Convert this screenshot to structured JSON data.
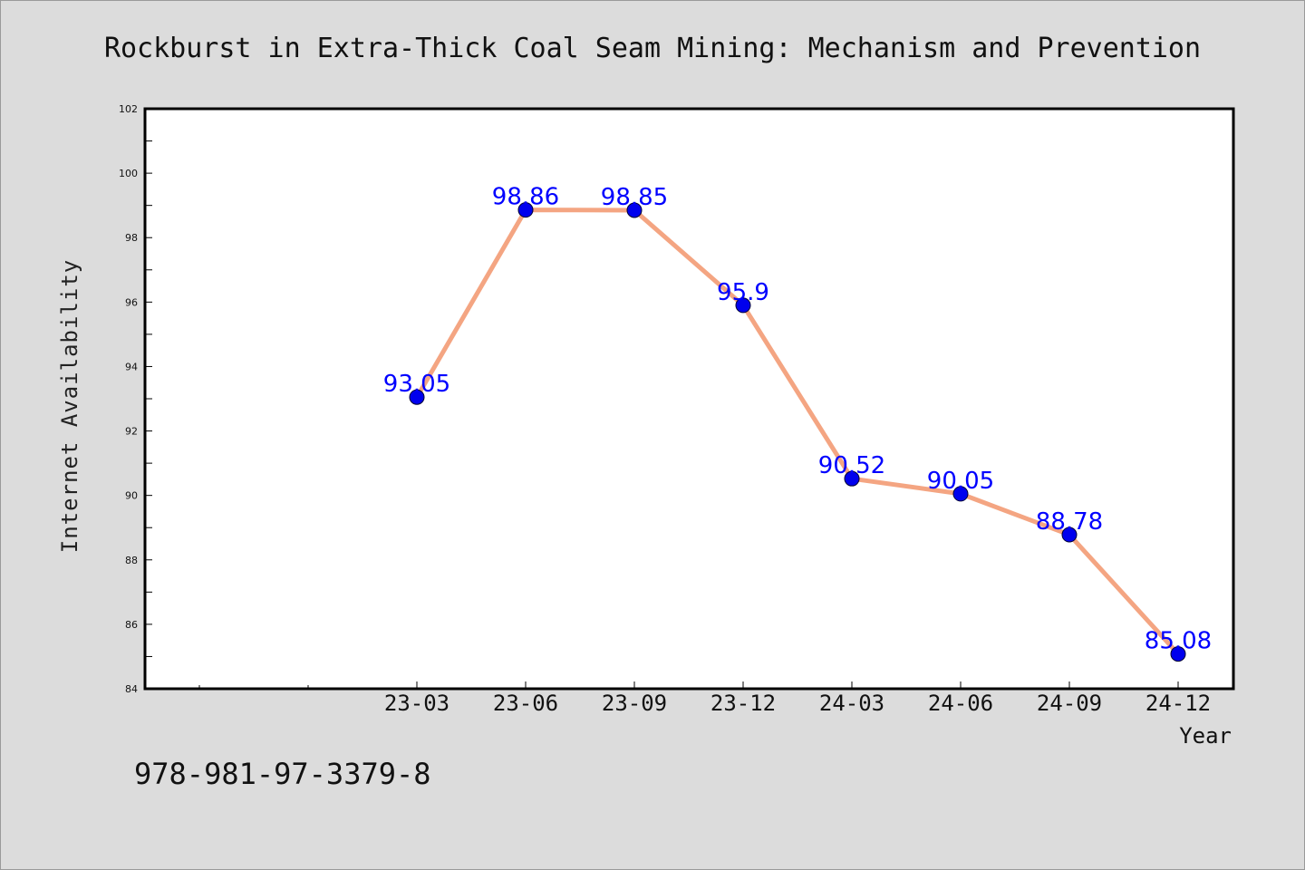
{
  "chart_data": {
    "type": "line",
    "title": "Rockburst in Extra-Thick Coal Seam Mining: Mechanism and Prevention",
    "xlabel": "Year",
    "ylabel": "Internet Availability",
    "categories": [
      "23-03",
      "23-06",
      "23-09",
      "23-12",
      "24-03",
      "24-06",
      "24-09",
      "24-12"
    ],
    "series": [
      {
        "values": [
          93.05,
          98.86,
          98.85,
          95.9,
          90.52,
          90.05,
          88.78,
          85.08
        ],
        "data_labels": [
          "93.05",
          "98.86",
          "98.85",
          "95.9",
          "90.52",
          "90.05",
          "88.78",
          "85.08"
        ]
      }
    ],
    "ylim": [
      84,
      102
    ],
    "yticks": [
      "84",
      "86",
      "88",
      "90",
      "92",
      "94",
      "96",
      "98",
      "100",
      "102"
    ],
    "grid": false,
    "legend": "none",
    "colors": {
      "line": "#f4a582",
      "marker": "#0000ee",
      "data_label": "#0000ff",
      "background": "#dcdcdc",
      "plot_area": "#ffffff"
    }
  },
  "footer": {
    "isbn": "978-981-97-3379-8"
  }
}
